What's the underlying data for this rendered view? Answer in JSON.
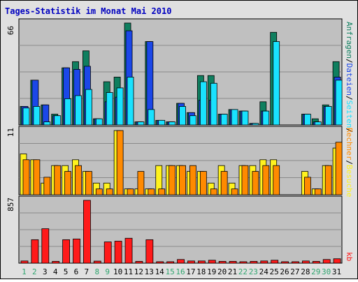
{
  "title": "Tages-Statistik im Monat Mai 2010",
  "colors": {
    "title": "#0000c0",
    "frame_bg": "#e0e0e0",
    "panel_bg": "#c0c0c0",
    "anfragen": "#0f7f5f",
    "dateien": "#1b47e8",
    "seiten": "#19e2ff",
    "besuche": "#fff21e",
    "rechner": "#ff8a00",
    "kb": "#ff1a1a",
    "weekday_label": "#008060",
    "weekend_label": "#2fa56f",
    "default_label": "#008060"
  },
  "chart_data": [
    {
      "type": "bar",
      "panel": "top",
      "ymax_label": "66",
      "ylim": [
        0,
        66
      ],
      "legend": [
        "Anfragen",
        "/",
        "Dateien",
        "/",
        "Seiten",
        "/"
      ],
      "categories": [
        "1",
        "2",
        "3",
        "4",
        "5",
        "6",
        "7",
        "8",
        "9",
        "10",
        "11",
        "12",
        "13",
        "14",
        "15",
        "16",
        "17",
        "18",
        "19",
        "20",
        "21",
        "22",
        "23",
        "24",
        "25",
        "26",
        "27",
        "28",
        "29",
        "30",
        "31"
      ],
      "series": [
        {
          "name": "Anfragen",
          "values": [
            12,
            29,
            13,
            7,
            37,
            41,
            48,
            4,
            28,
            31,
            66,
            2,
            54,
            3,
            2,
            14,
            8,
            32,
            32,
            7,
            10,
            9,
            1,
            15,
            60,
            0,
            0,
            7,
            4,
            13,
            41
          ]
        },
        {
          "name": "Dateien",
          "values": [
            12,
            29,
            13,
            6,
            37,
            36,
            38,
            4,
            15,
            18,
            61,
            2,
            54,
            3,
            2,
            14,
            8,
            16,
            16,
            7,
            10,
            9,
            1,
            9,
            0,
            0,
            0,
            7,
            2,
            12,
            31
          ]
        },
        {
          "name": "Seiten",
          "values": [
            11,
            12,
            2,
            6,
            17,
            19,
            23,
            4,
            21,
            24,
            31,
            2,
            10,
            3,
            2,
            12,
            6,
            28,
            27,
            7,
            10,
            9,
            1,
            9,
            54,
            0,
            0,
            7,
            2,
            12,
            29
          ]
        }
      ]
    },
    {
      "type": "bar",
      "panel": "middle",
      "ymax_label": "11",
      "ylim": [
        0,
        11
      ],
      "legend": [
        "Rechner",
        "/",
        "Besuche"
      ],
      "series": [
        {
          "name": "Besuche",
          "values": [
            7,
            6,
            2,
            5,
            5,
            6,
            4,
            2,
            2,
            11,
            1,
            1,
            1,
            5,
            5,
            5,
            4,
            4,
            2,
            5,
            2,
            5,
            5,
            6,
            6,
            0,
            0,
            4,
            1,
            5,
            8
          ]
        },
        {
          "name": "Rechner",
          "values": [
            6,
            6,
            3,
            5,
            4,
            5,
            4,
            1,
            1,
            11,
            1,
            4,
            1,
            1,
            5,
            5,
            5,
            4,
            1,
            4,
            1,
            5,
            4,
            5,
            5,
            0,
            0,
            3,
            1,
            5,
            9
          ]
        }
      ]
    },
    {
      "type": "bar",
      "panel": "bottom",
      "ymax_label": "857",
      "ylim": [
        0,
        857
      ],
      "legend": [
        "kb"
      ],
      "series": [
        {
          "name": "kb",
          "values": [
            30,
            320,
            470,
            25,
            320,
            330,
            857,
            28,
            290,
            300,
            340,
            25,
            320,
            20,
            20,
            50,
            30,
            30,
            40,
            25,
            25,
            20,
            25,
            30,
            40,
            20,
            20,
            30,
            25,
            50,
            60
          ]
        }
      ]
    }
  ],
  "x_labels": [
    "1",
    "2",
    "3",
    "4",
    "5",
    "6",
    "7",
    "8",
    "9",
    "10",
    "11",
    "12",
    "13",
    "14",
    "15",
    "16",
    "17",
    "18",
    "19",
    "20",
    "21",
    "22",
    "23",
    "24",
    "25",
    "26",
    "27",
    "28",
    "29",
    "30",
    "31"
  ],
  "weekend_days": [
    "1",
    "2",
    "8",
    "9",
    "15",
    "16",
    "22",
    "23",
    "29",
    "30"
  ]
}
